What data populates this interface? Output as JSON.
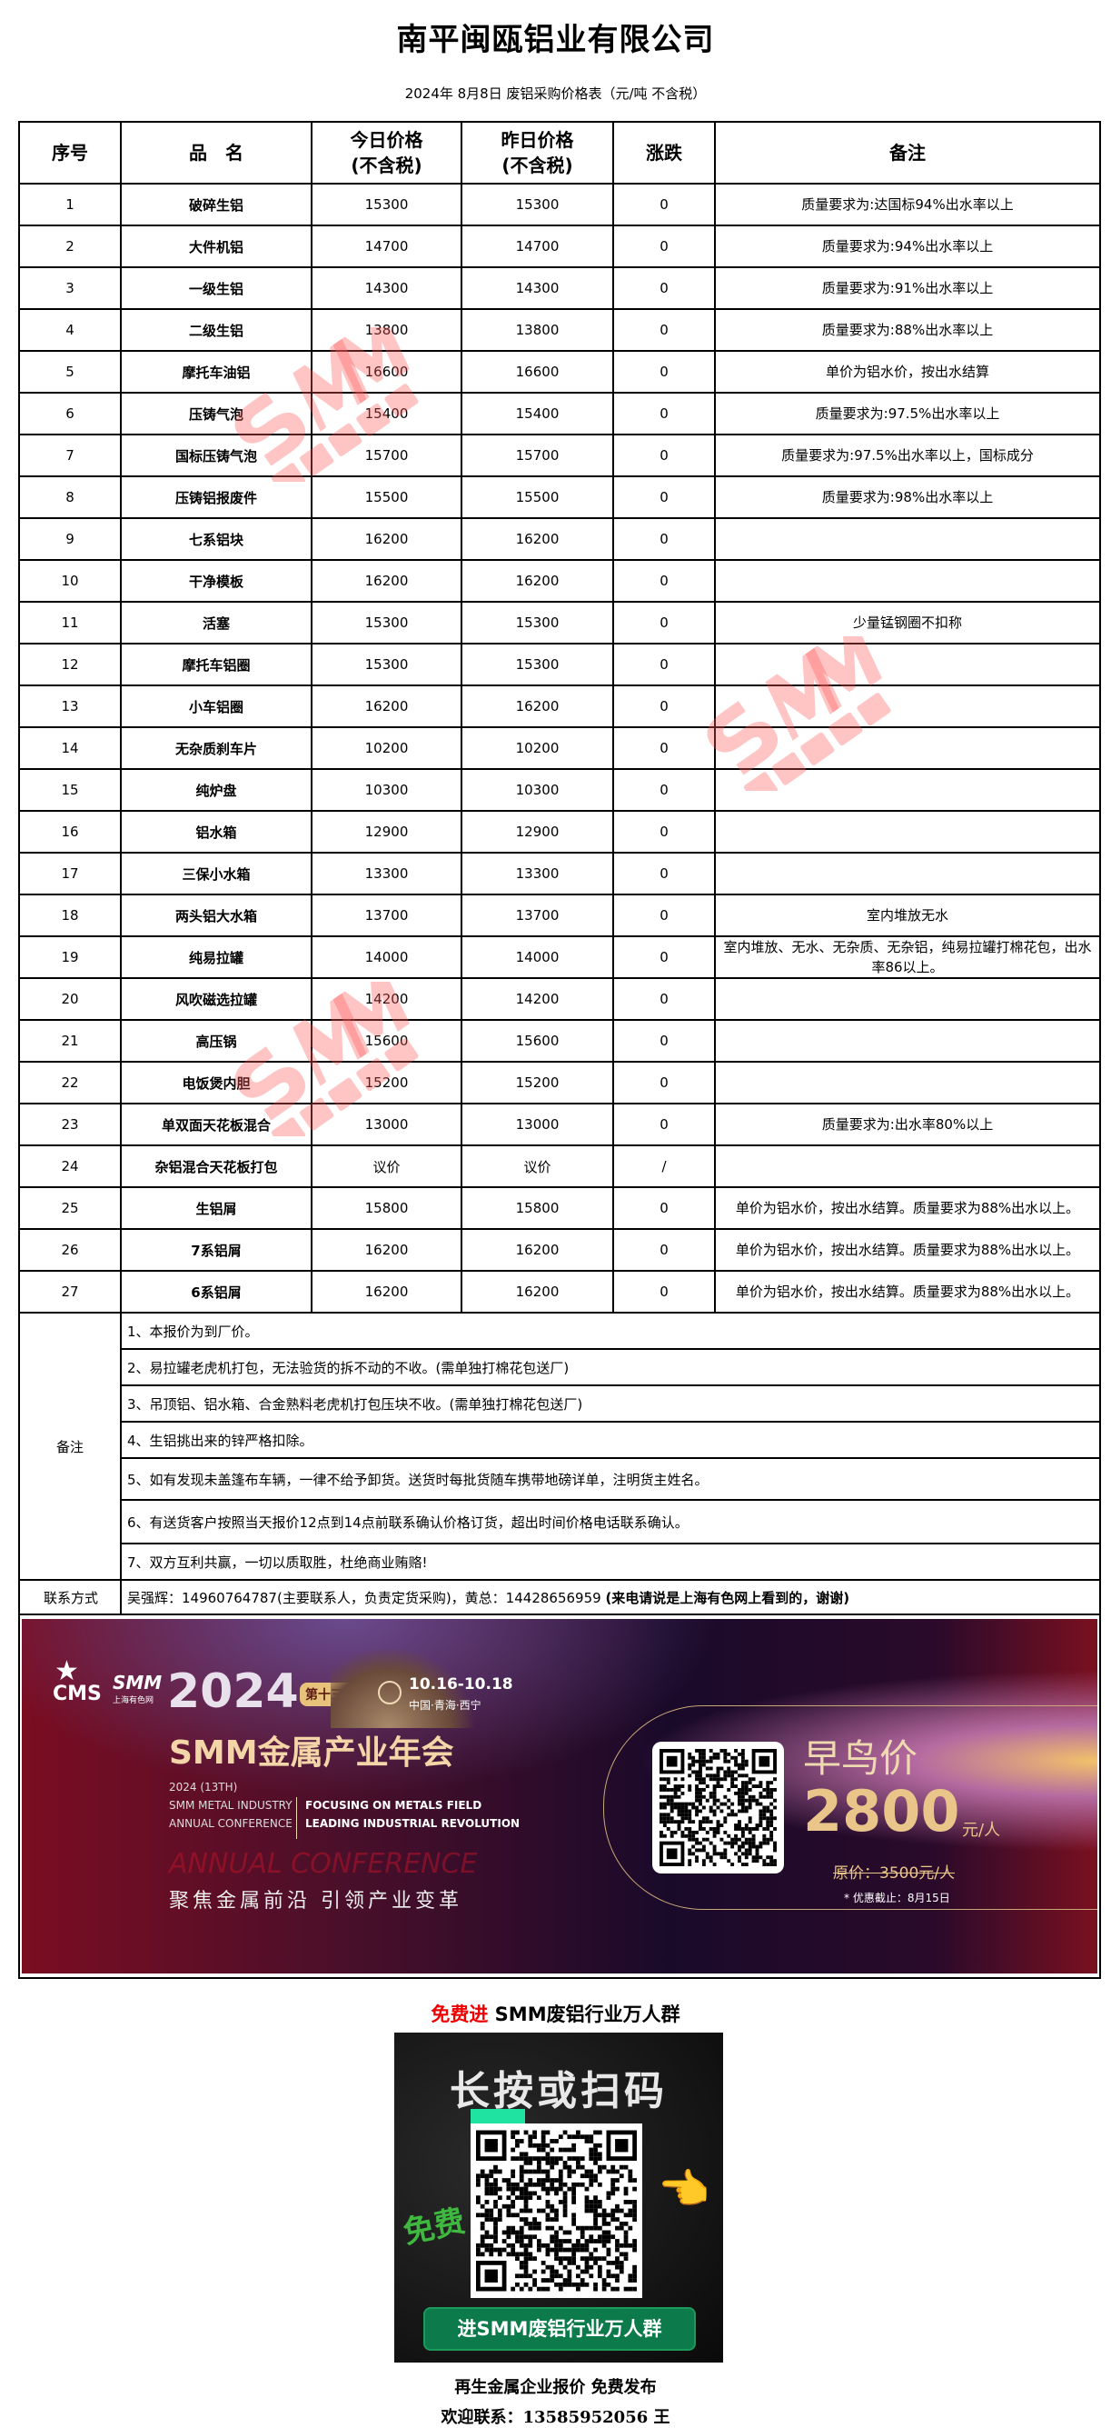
{
  "header": {
    "title": "南平闽瓯铝业有限公司",
    "subtitle": "2024年 8月8日 废铝采购价格表（元/吨  不含税）"
  },
  "table": {
    "columns": [
      "序号",
      "品　名",
      "今日价格\n(不含税)",
      "昨日价格\n(不含税)",
      "涨跌",
      "备注"
    ],
    "col_no": "序号",
    "col_name": "品　名",
    "col_today_1": "今日价格",
    "col_today_2": "(不含税)",
    "col_yest_1": "昨日价格",
    "col_yest_2": "(不含税)",
    "col_change": "涨跌",
    "col_remark": "备注",
    "rows": [
      {
        "no": "1",
        "name": "破碎生铝",
        "today": "15300",
        "yesterday": "15300",
        "change": "0",
        "remark": "质量要求为:达国标94%出水率以上"
      },
      {
        "no": "2",
        "name": "大件机铝",
        "today": "14700",
        "yesterday": "14700",
        "change": "0",
        "remark": "质量要求为:94%出水率以上"
      },
      {
        "no": "3",
        "name": "一级生铝",
        "today": "14300",
        "yesterday": "14300",
        "change": "0",
        "remark": "质量要求为:91%出水率以上"
      },
      {
        "no": "4",
        "name": "二级生铝",
        "today": "13800",
        "yesterday": "13800",
        "change": "0",
        "remark": "质量要求为:88%出水率以上"
      },
      {
        "no": "5",
        "name": "摩托车油铝",
        "today": "16600",
        "yesterday": "16600",
        "change": "0",
        "remark": "单价为铝水价，按出水结算"
      },
      {
        "no": "6",
        "name": "压铸气泡",
        "today": "15400",
        "yesterday": "15400",
        "change": "0",
        "remark": "质量要求为:97.5%出水率以上"
      },
      {
        "no": "7",
        "name": "国标压铸气泡",
        "today": "15700",
        "yesterday": "15700",
        "change": "0",
        "remark": "质量要求为:97.5%出水率以上，国标成分"
      },
      {
        "no": "8",
        "name": "压铸铝报废件",
        "today": "15500",
        "yesterday": "15500",
        "change": "0",
        "remark": "质量要求为:98%出水率以上"
      },
      {
        "no": "9",
        "name": "七系铝块",
        "today": "16200",
        "yesterday": "16200",
        "change": "0",
        "remark": ""
      },
      {
        "no": "10",
        "name": "干净模板",
        "today": "16200",
        "yesterday": "16200",
        "change": "0",
        "remark": ""
      },
      {
        "no": "11",
        "name": "活塞",
        "today": "15300",
        "yesterday": "15300",
        "change": "0",
        "remark": "少量锰钢圈不扣称"
      },
      {
        "no": "12",
        "name": "摩托车铝圈",
        "today": "15300",
        "yesterday": "15300",
        "change": "0",
        "remark": ""
      },
      {
        "no": "13",
        "name": "小车铝圈",
        "today": "16200",
        "yesterday": "16200",
        "change": "0",
        "remark": ""
      },
      {
        "no": "14",
        "name": "无杂质刹车片",
        "today": "10200",
        "yesterday": "10200",
        "change": "0",
        "remark": ""
      },
      {
        "no": "15",
        "name": "纯炉盘",
        "today": "10300",
        "yesterday": "10300",
        "change": "0",
        "remark": ""
      },
      {
        "no": "16",
        "name": "铝水箱",
        "today": "12900",
        "yesterday": "12900",
        "change": "0",
        "remark": ""
      },
      {
        "no": "17",
        "name": "三保小水箱",
        "today": "13300",
        "yesterday": "13300",
        "change": "0",
        "remark": ""
      },
      {
        "no": "18",
        "name": "两头铝大水箱",
        "today": "13700",
        "yesterday": "13700",
        "change": "0",
        "remark": "室内堆放无水"
      },
      {
        "no": "19",
        "name": "纯易拉罐",
        "today": "14000",
        "yesterday": "14000",
        "change": "0",
        "remark": "室内堆放、无水、无杂质、无杂铝，纯易拉罐打棉花包，出水率86以上。"
      },
      {
        "no": "20",
        "name": "风吹磁选拉罐",
        "today": "14200",
        "yesterday": "14200",
        "change": "0",
        "remark": ""
      },
      {
        "no": "21",
        "name": "高压锅",
        "today": "15600",
        "yesterday": "15600",
        "change": "0",
        "remark": ""
      },
      {
        "no": "22",
        "name": "电饭煲内胆",
        "today": "15200",
        "yesterday": "15200",
        "change": "0",
        "remark": ""
      },
      {
        "no": "23",
        "name": "单双面天花板混合",
        "today": "13000",
        "yesterday": "13000",
        "change": "0",
        "remark": "质量要求为:出水率80%以上"
      },
      {
        "no": "24",
        "name": "杂铝混合天花板打包",
        "today": "议价",
        "yesterday": "议价",
        "change": "/",
        "remark": ""
      },
      {
        "no": "25",
        "name": "生铝屑",
        "today": "15800",
        "yesterday": "15800",
        "change": "0",
        "remark": "单价为铝水价，按出水结算。质量要求为88%出水以上。"
      },
      {
        "no": "26",
        "name": "7系铝屑",
        "today": "16200",
        "yesterday": "16200",
        "change": "0",
        "remark": "单价为铝水价，按出水结算。质量要求为88%出水以上。"
      },
      {
        "no": "27",
        "name": "6系铝屑",
        "today": "16200",
        "yesterday": "16200",
        "change": "0",
        "remark": "单价为铝水价，按出水结算。质量要求为88%出水以上。"
      }
    ]
  },
  "notes": {
    "label": "备注",
    "items": [
      "1、本报价为到厂价。",
      "2、易拉罐老虎机打包，无法验货的拆不动的不收。(需单独打棉花包送厂)",
      "3、吊顶铝、铝水箱、合金熟料老虎机打包压块不收。(需单独打棉花包送厂)",
      "4、生铝挑出来的锌严格扣除。",
      "5、如有发现未盖篷布车辆，一律不给予卸货。送货时每批货随车携带地磅详单，注明货主姓名。",
      "6、有送货客户按照当天报价12点到14点前联系确认价格订货，超出时间价格电话联系确认。",
      "7、双方互利共赢，一切以质取胜，杜绝商业贿赂!"
    ]
  },
  "contact": {
    "label": "联系方式",
    "text": "吴强辉：14960764787(主要联系人，负责定货采购)，黄总：14428656959 ",
    "bold_text": "(来电请说是上海有色网上看到的，谢谢)"
  },
  "banner": {
    "cms": "CMS",
    "smm": "SMM",
    "smm_cn": "上海有色网",
    "year": "2024",
    "edition": "第十三届",
    "date": "10.16-10.18",
    "place": "中国·青海·西宁",
    "main": "SMM金属产业年会",
    "en1": "2024 (13TH)",
    "en2": "SMM METAL INDUSTRY",
    "en3": "ANNUAL CONFERENCE",
    "en4": "FOCUSING ON METALS FIELD",
    "en5": "LEADING INDUSTRIAL REVOLUTION",
    "ghost": "ANNUAL CONFERENCE",
    "slogan": "聚焦金属前沿  引领产业变革",
    "early_bird": "早鸟价",
    "price": "2800",
    "unit": "元/人",
    "original": "原价：3500元/人",
    "deadline": "* 优惠截止：8月15日"
  },
  "promo": {
    "free_red": "免费进",
    "free_rest": " SMM废铝行业万人群",
    "qr_heading": "长按或扫码",
    "qr_free": "免费",
    "qr_button": "进SMM废铝行业万人群"
  },
  "footer": {
    "line1": "再生金属企业报价  免费发布",
    "line2": "欢迎联系：13585952056  王"
  },
  "watermark": {
    "logo": "SMM",
    "cn": "上海有色网"
  },
  "colors": {
    "accent_red": "#ee0000",
    "watermark": "#ff5a5a",
    "qr_green": "#0c7a4a"
  }
}
